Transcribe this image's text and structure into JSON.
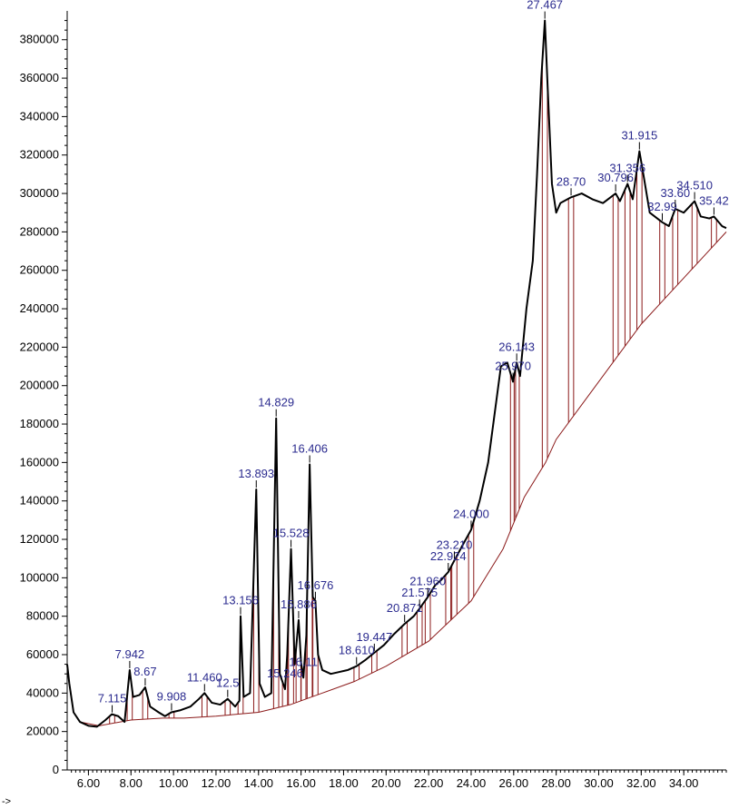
{
  "chart_data": {
    "type": "line",
    "ylim": [
      0,
      395000
    ],
    "xlim": [
      5.0,
      36.0
    ],
    "yticks": [
      0,
      20000,
      40000,
      60000,
      80000,
      100000,
      120000,
      140000,
      160000,
      180000,
      200000,
      220000,
      240000,
      260000,
      280000,
      300000,
      320000,
      340000,
      360000,
      380000
    ],
    "xticks": [
      "6.00",
      "8.00",
      "10.00",
      "12.00",
      "14.00",
      "16.00",
      "18.00",
      "20.00",
      "22.00",
      "24.00",
      "26.00",
      "28.00",
      "30.00",
      "32.00",
      "34.00"
    ],
    "xtick_values": [
      6,
      8,
      10,
      12,
      14,
      16,
      18,
      20,
      22,
      24,
      26,
      28,
      30,
      32,
      34
    ],
    "x_axis_arrow": "->",
    "signal": [
      [
        5.0,
        55000
      ],
      [
        5.1,
        45000
      ],
      [
        5.3,
        30000
      ],
      [
        5.6,
        25000
      ],
      [
        6.0,
        23000
      ],
      [
        6.4,
        22500
      ],
      [
        6.8,
        26000
      ],
      [
        7.1,
        29000
      ],
      [
        7.4,
        28000
      ],
      [
        7.7,
        25000
      ],
      [
        7.94,
        52000
      ],
      [
        8.1,
        38000
      ],
      [
        8.4,
        39000
      ],
      [
        8.67,
        43000
      ],
      [
        8.9,
        33000
      ],
      [
        9.3,
        30000
      ],
      [
        9.6,
        28000
      ],
      [
        9.9,
        30000
      ],
      [
        10.3,
        31000
      ],
      [
        10.8,
        33000
      ],
      [
        11.2,
        37000
      ],
      [
        11.46,
        40000
      ],
      [
        11.8,
        35000
      ],
      [
        12.2,
        34000
      ],
      [
        12.55,
        37000
      ],
      [
        12.9,
        33000
      ],
      [
        13.1,
        36000
      ],
      [
        13.156,
        80000
      ],
      [
        13.3,
        38000
      ],
      [
        13.6,
        40000
      ],
      [
        13.893,
        146000
      ],
      [
        14.05,
        45000
      ],
      [
        14.3,
        38000
      ],
      [
        14.6,
        40000
      ],
      [
        14.829,
        183000
      ],
      [
        15.0,
        50000
      ],
      [
        15.246,
        42000
      ],
      [
        15.35,
        60000
      ],
      [
        15.528,
        115000
      ],
      [
        15.7,
        55000
      ],
      [
        15.886,
        78000
      ],
      [
        16.0,
        56000
      ],
      [
        16.11,
        48000
      ],
      [
        16.25,
        70000
      ],
      [
        16.406,
        159000
      ],
      [
        16.55,
        90000
      ],
      [
        16.676,
        88000
      ],
      [
        16.8,
        60000
      ],
      [
        17.0,
        52000
      ],
      [
        17.4,
        50000
      ],
      [
        17.8,
        51000
      ],
      [
        18.2,
        52000
      ],
      [
        18.61,
        54000
      ],
      [
        19.0,
        57000
      ],
      [
        19.447,
        61000
      ],
      [
        19.9,
        65000
      ],
      [
        20.4,
        71000
      ],
      [
        20.871,
        76000
      ],
      [
        21.3,
        80000
      ],
      [
        21.575,
        84000
      ],
      [
        21.96,
        90000
      ],
      [
        22.3,
        96000
      ],
      [
        22.6,
        99000
      ],
      [
        22.924,
        103000
      ],
      [
        23.21,
        109000
      ],
      [
        23.6,
        117000
      ],
      [
        24.0,
        125000
      ],
      [
        24.4,
        140000
      ],
      [
        24.8,
        160000
      ],
      [
        25.1,
        185000
      ],
      [
        25.4,
        210000
      ],
      [
        25.7,
        212000
      ],
      [
        25.97,
        202000
      ],
      [
        26.143,
        212000
      ],
      [
        26.3,
        205000
      ],
      [
        26.6,
        240000
      ],
      [
        26.9,
        265000
      ],
      [
        27.1,
        310000
      ],
      [
        27.3,
        360000
      ],
      [
        27.467,
        390000
      ],
      [
        27.6,
        355000
      ],
      [
        27.8,
        305000
      ],
      [
        28.0,
        290000
      ],
      [
        28.2,
        295000
      ],
      [
        28.7,
        298000
      ],
      [
        29.2,
        300000
      ],
      [
        29.7,
        297000
      ],
      [
        30.2,
        295000
      ],
      [
        30.796,
        300000
      ],
      [
        31.0,
        296000
      ],
      [
        31.356,
        305000
      ],
      [
        31.6,
        297000
      ],
      [
        31.915,
        322000
      ],
      [
        32.1,
        310000
      ],
      [
        32.4,
        290000
      ],
      [
        32.99,
        285000
      ],
      [
        33.3,
        283000
      ],
      [
        33.6,
        292000
      ],
      [
        34.0,
        290000
      ],
      [
        34.51,
        296000
      ],
      [
        34.8,
        288000
      ],
      [
        35.2,
        287000
      ],
      [
        35.42,
        288000
      ],
      [
        35.8,
        283000
      ],
      [
        36.0,
        282000
      ]
    ],
    "baseline": [
      [
        5.6,
        25000
      ],
      [
        6.5,
        23000
      ],
      [
        8.0,
        26000
      ],
      [
        9.5,
        27000
      ],
      [
        10.5,
        27000
      ],
      [
        12.0,
        28000
      ],
      [
        14.0,
        30000
      ],
      [
        15.5,
        34000
      ],
      [
        17.0,
        40000
      ],
      [
        18.5,
        46000
      ],
      [
        20.0,
        54000
      ],
      [
        22.0,
        67000
      ],
      [
        24.0,
        88000
      ],
      [
        25.5,
        115000
      ],
      [
        26.5,
        142000
      ],
      [
        27.5,
        160000
      ],
      [
        28.0,
        172000
      ],
      [
        29.0,
        187000
      ],
      [
        30.0,
        202000
      ],
      [
        31.0,
        217000
      ],
      [
        32.0,
        232000
      ],
      [
        33.0,
        244000
      ],
      [
        34.0,
        256000
      ],
      [
        35.0,
        268000
      ],
      [
        36.0,
        280000
      ]
    ],
    "peaks": [
      {
        "rt": 7.115,
        "height": 29000,
        "label": "7.115"
      },
      {
        "rt": 7.942,
        "height": 52000,
        "label": "7.942"
      },
      {
        "rt": 8.67,
        "height": 43000,
        "label": "8.67"
      },
      {
        "rt": 9.908,
        "height": 30000,
        "label": "9.908"
      },
      {
        "rt": 11.46,
        "height": 40000,
        "label": "11.460"
      },
      {
        "rt": 12.55,
        "height": 37000,
        "label": "12.5"
      },
      {
        "rt": 13.156,
        "height": 80000,
        "label": "13.156"
      },
      {
        "rt": 13.893,
        "height": 146000,
        "label": "13.893"
      },
      {
        "rt": 14.829,
        "height": 183000,
        "label": "14.829"
      },
      {
        "rt": 15.246,
        "height": 42000,
        "label": "15.246"
      },
      {
        "rt": 15.528,
        "height": 115000,
        "label": "15.528"
      },
      {
        "rt": 15.886,
        "height": 78000,
        "label": "15.886"
      },
      {
        "rt": 16.11,
        "height": 48000,
        "label": "16.11"
      },
      {
        "rt": 16.406,
        "height": 159000,
        "label": "16.406"
      },
      {
        "rt": 16.676,
        "height": 88000,
        "label": "16.676"
      },
      {
        "rt": 18.61,
        "height": 54000,
        "label": "18.610"
      },
      {
        "rt": 19.447,
        "height": 61000,
        "label": "19.447"
      },
      {
        "rt": 20.871,
        "height": 76000,
        "label": "20.871"
      },
      {
        "rt": 21.575,
        "height": 84000,
        "label": "21.575"
      },
      {
        "rt": 21.96,
        "height": 90000,
        "label": "21.960"
      },
      {
        "rt": 22.924,
        "height": 103000,
        "label": "22.924"
      },
      {
        "rt": 23.21,
        "height": 109000,
        "label": "23.210"
      },
      {
        "rt": 24.0,
        "height": 125000,
        "label": "24.000"
      },
      {
        "rt": 25.97,
        "height": 202000,
        "label": "25.970"
      },
      {
        "rt": 26.143,
        "height": 212000,
        "label": "26.143"
      },
      {
        "rt": 27.467,
        "height": 390000,
        "label": "27.467"
      },
      {
        "rt": 28.7,
        "height": 298000,
        "label": "28.70"
      },
      {
        "rt": 30.796,
        "height": 300000,
        "label": "30.796"
      },
      {
        "rt": 31.356,
        "height": 305000,
        "label": "31.356"
      },
      {
        "rt": 31.915,
        "height": 322000,
        "label": "31.915"
      },
      {
        "rt": 32.99,
        "height": 285000,
        "label": "32.99"
      },
      {
        "rt": 33.6,
        "height": 292000,
        "label": "33.60"
      },
      {
        "rt": 34.51,
        "height": 296000,
        "label": "34.510"
      },
      {
        "rt": 35.42,
        "height": 288000,
        "label": "35.42"
      }
    ],
    "colors": {
      "signal": "#000000",
      "baseline": "#8b1a1a",
      "peak_label": "#2b2b8f",
      "axis": "#000000"
    }
  }
}
